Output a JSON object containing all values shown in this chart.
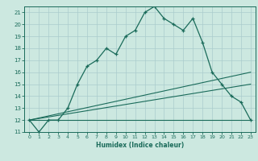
{
  "xlabel": "Humidex (Indice chaleur)",
  "bg_color": "#cce8e0",
  "grid_color": "#aacccc",
  "line_color": "#1a6b5a",
  "xlim": [
    -0.5,
    23.5
  ],
  "ylim": [
    11,
    21.5
  ],
  "yticks": [
    11,
    12,
    13,
    14,
    15,
    16,
    17,
    18,
    19,
    20,
    21
  ],
  "xticks": [
    0,
    1,
    2,
    3,
    4,
    5,
    6,
    7,
    8,
    9,
    10,
    11,
    12,
    13,
    14,
    15,
    16,
    17,
    18,
    19,
    20,
    21,
    22,
    23
  ],
  "series1_x": [
    0,
    1,
    2,
    3,
    4,
    5,
    6,
    7,
    8,
    9,
    10,
    11,
    12,
    13,
    14,
    15,
    16,
    17,
    18,
    19,
    20,
    21,
    22,
    23
  ],
  "series1_y": [
    12,
    11,
    12,
    12,
    13,
    15,
    16.5,
    17,
    18,
    17.5,
    19,
    19.5,
    21,
    21.5,
    20.5,
    20,
    19.5,
    20.5,
    18.5,
    16,
    15,
    14,
    13.5,
    12
  ],
  "series2_x": [
    0,
    23
  ],
  "series2_y": [
    12,
    12
  ],
  "series3_x": [
    0,
    23
  ],
  "series3_y": [
    12,
    15.0
  ],
  "series4_x": [
    0,
    23
  ],
  "series4_y": [
    12,
    16.0
  ]
}
